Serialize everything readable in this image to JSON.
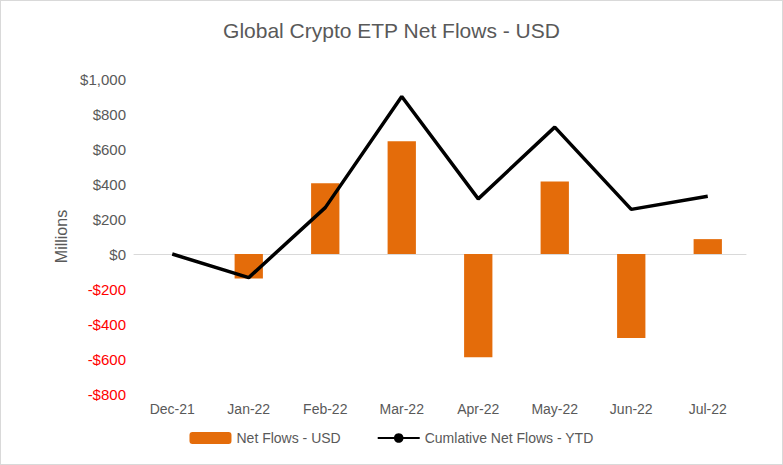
{
  "chart_data": {
    "type": "bar",
    "title": "Global Crypto ETP Net Flows - USD",
    "y_label": "Millions",
    "categories": [
      "Dec-21",
      "Jan-22",
      "Feb-22",
      "Mar-22",
      "Apr-22",
      "May-22",
      "Jun-22",
      "Jul-22"
    ],
    "series": [
      {
        "name": "Net Flows - USD",
        "type": "bar",
        "color": "#e46c0a",
        "values": [
          null,
          -140,
          405,
          645,
          -590,
          415,
          -480,
          85
        ]
      },
      {
        "name": "Cumlative Net Flows - YTD",
        "type": "line",
        "color": "#000000",
        "marker": "none",
        "line_style": "solid",
        "values": [
          0,
          -135,
          265,
          900,
          315,
          725,
          255,
          330
        ]
      }
    ],
    "ylim": [
      -800,
      1000
    ],
    "yticks": [
      {
        "value": -800,
        "label": "-$800"
      },
      {
        "value": -600,
        "label": "-$600"
      },
      {
        "value": -400,
        "label": "-$400"
      },
      {
        "value": -200,
        "label": "-$200"
      },
      {
        "value": 0,
        "label": "$0"
      },
      {
        "value": 200,
        "label": "$200"
      },
      {
        "value": 400,
        "label": "$400"
      },
      {
        "value": 600,
        "label": "$600"
      },
      {
        "value": 800,
        "label": "$800"
      },
      {
        "value": 1000,
        "label": "$1,000"
      }
    ],
    "grid": false,
    "legend": "bottom"
  }
}
